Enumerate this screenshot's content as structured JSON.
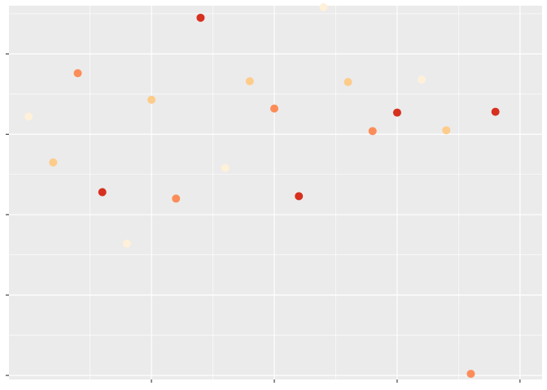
{
  "chart_data": {
    "type": "scatter",
    "title": "",
    "xlabel": "",
    "ylabel": "",
    "xlim": [
      -0.8,
      20.9
    ],
    "ylim": [
      -0.05,
      4.6
    ],
    "x_major_ticks": [
      5,
      10,
      15,
      20
    ],
    "x_minor_ticks": [
      2.5,
      7.5,
      12.5,
      17.5
    ],
    "y_major_ticks": [
      0,
      1,
      2,
      3,
      4
    ],
    "y_minor_ticks": [
      0.5,
      1.5,
      2.5,
      3.5,
      4.5
    ],
    "grid": true,
    "legend": "none",
    "panel_background": "#EBEBEB",
    "grid_color": "#FFFFFF",
    "palette": [
      "#FEF0D9",
      "#FDCC8A",
      "#FC8D59",
      "#D7301F"
    ],
    "points": [
      {
        "x": 0,
        "y": 3.22,
        "color": "#FEF0D9"
      },
      {
        "x": 1,
        "y": 2.65,
        "color": "#FDCC8A"
      },
      {
        "x": 2,
        "y": 3.76,
        "color": "#FC8D59"
      },
      {
        "x": 3,
        "y": 2.28,
        "color": "#D7301F"
      },
      {
        "x": 4,
        "y": 1.64,
        "color": "#FEF0D9"
      },
      {
        "x": 5,
        "y": 3.43,
        "color": "#FDCC8A"
      },
      {
        "x": 6,
        "y": 2.2,
        "color": "#FC8D59"
      },
      {
        "x": 7,
        "y": 4.45,
        "color": "#D7301F"
      },
      {
        "x": 8,
        "y": 2.58,
        "color": "#FEF0D9"
      },
      {
        "x": 9,
        "y": 3.66,
        "color": "#FDCC8A"
      },
      {
        "x": 10,
        "y": 3.32,
        "color": "#FC8D59"
      },
      {
        "x": 11,
        "y": 2.23,
        "color": "#D7301F"
      },
      {
        "x": 12,
        "y": 4.58,
        "color": "#FEF0D9"
      },
      {
        "x": 13,
        "y": 3.65,
        "color": "#FDCC8A"
      },
      {
        "x": 14,
        "y": 3.04,
        "color": "#FC8D59"
      },
      {
        "x": 15,
        "y": 3.27,
        "color": "#D7301F"
      },
      {
        "x": 16,
        "y": 3.68,
        "color": "#FEF0D9"
      },
      {
        "x": 17,
        "y": 3.05,
        "color": "#FDCC8A"
      },
      {
        "x": 18,
        "y": 0.02,
        "color": "#FC8D59"
      },
      {
        "x": 19,
        "y": 3.28,
        "color": "#D7301F"
      }
    ]
  }
}
